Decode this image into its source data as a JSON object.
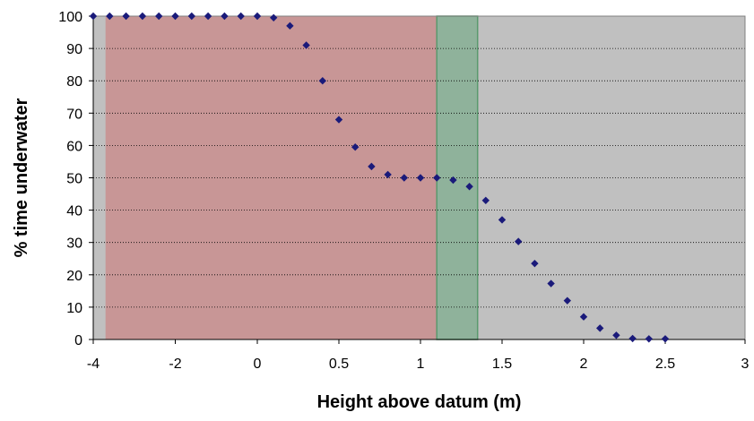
{
  "chart_data": {
    "type": "scatter",
    "title": "",
    "xlabel": "Height above datum (m)",
    "ylabel": "% time underwater",
    "ylim": [
      0,
      100
    ],
    "x_tick_labels": [
      "-4",
      "-2",
      "0",
      "0.5",
      "1",
      "1.5",
      "2",
      "2.5",
      "3"
    ],
    "y_tick_labels": [
      "0",
      "10",
      "20",
      "30",
      "40",
      "50",
      "60",
      "70",
      "80",
      "90",
      "100"
    ],
    "grid": "horizontal dotted",
    "legend": "none",
    "background_bands": [
      {
        "name": "red-band",
        "x_start": -3.7,
        "x_end": 1.1,
        "color": "#c89696"
      },
      {
        "name": "green-band",
        "x_start": 1.1,
        "x_end": 1.35,
        "color": "#8fb29b"
      }
    ],
    "series": [
      {
        "marker_color": "#1a1a7a",
        "points": [
          [
            -4.0,
            100
          ],
          [
            -3.6,
            100
          ],
          [
            -3.2,
            100
          ],
          [
            -2.8,
            100
          ],
          [
            -2.4,
            100
          ],
          [
            -2.0,
            100
          ],
          [
            -1.6,
            100
          ],
          [
            -1.2,
            100
          ],
          [
            -0.8,
            100
          ],
          [
            -0.4,
            100
          ],
          [
            0.0,
            100
          ],
          [
            0.1,
            99.5
          ],
          [
            0.2,
            97
          ],
          [
            0.3,
            91
          ],
          [
            0.4,
            80
          ],
          [
            0.5,
            68
          ],
          [
            0.6,
            59.5
          ],
          [
            0.7,
            53.5
          ],
          [
            0.8,
            51
          ],
          [
            0.9,
            50
          ],
          [
            1.0,
            50
          ],
          [
            1.1,
            50
          ],
          [
            1.2,
            49.3
          ],
          [
            1.3,
            47.3
          ],
          [
            1.4,
            43
          ],
          [
            1.5,
            37
          ],
          [
            1.6,
            30.3
          ],
          [
            1.7,
            23.5
          ],
          [
            1.8,
            17.3
          ],
          [
            1.9,
            12
          ],
          [
            2.0,
            7
          ],
          [
            2.1,
            3.5
          ],
          [
            2.2,
            1.3
          ],
          [
            2.3,
            0.3
          ],
          [
            2.4,
            0.2
          ],
          [
            2.5,
            0.2
          ]
        ]
      }
    ]
  },
  "colors": {
    "plot_background": "#c0c0c0",
    "plot_border": "#808080",
    "gridline": "#000000",
    "red_band": "#c89696",
    "green_band": "#8fb29b",
    "green_band_border": "#5a9a6e",
    "marker": "#1a1a7a"
  }
}
